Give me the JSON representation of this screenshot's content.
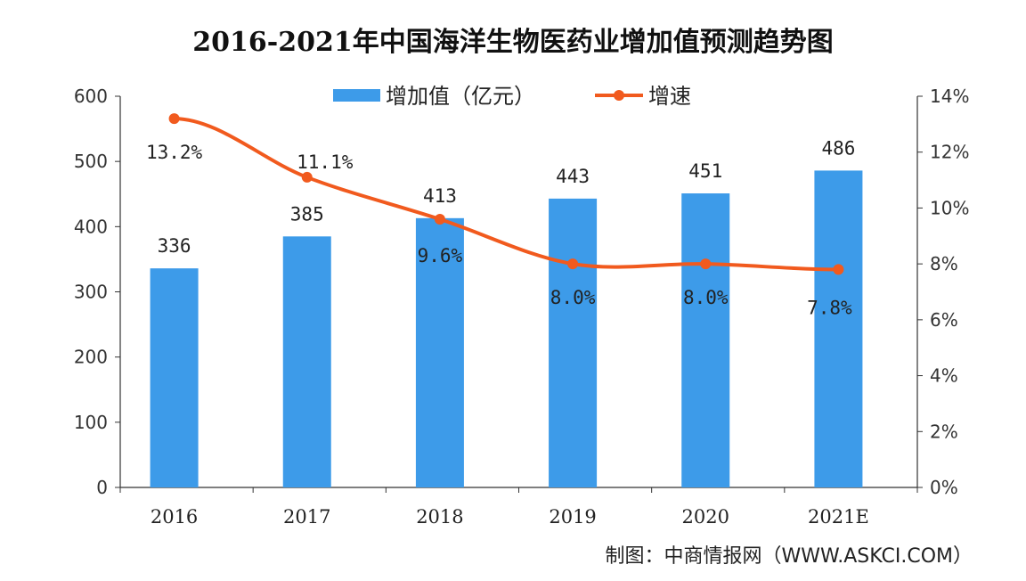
{
  "chart_data": {
    "type": "bar+line",
    "title": "2016-2021年中国海洋生物医药业增加值预测趋势图",
    "categories": [
      "2016",
      "2017",
      "2018",
      "2019",
      "2020",
      "2021E"
    ],
    "series": [
      {
        "name": "增加值（亿元）",
        "type": "bar",
        "axis": "left",
        "values": [
          336,
          385,
          413,
          443,
          451,
          486
        ],
        "labels": [
          "336",
          "385",
          "413",
          "443",
          "451",
          "486"
        ],
        "color": "#3d9be9"
      },
      {
        "name": "增速",
        "type": "line",
        "axis": "right",
        "values": [
          13.2,
          11.1,
          9.6,
          8.0,
          8.0,
          7.8
        ],
        "labels": [
          "13.2%",
          "11.1%",
          "9.6%",
          "8.0%",
          "8.0%",
          "7.8%"
        ],
        "color": "#f15a1e"
      }
    ],
    "y_left": {
      "range": [
        0,
        600
      ],
      "ticks": [
        "0",
        "100",
        "200",
        "300",
        "400",
        "500",
        "600"
      ]
    },
    "y_right": {
      "range": [
        0,
        14
      ],
      "ticks": [
        "0%",
        "2%",
        "4%",
        "6%",
        "8%",
        "10%",
        "12%",
        "14%"
      ]
    },
    "grid": false,
    "legend_placement": "top-center",
    "source": "制图：中商情报网（WWW.ASKCI.COM）"
  }
}
